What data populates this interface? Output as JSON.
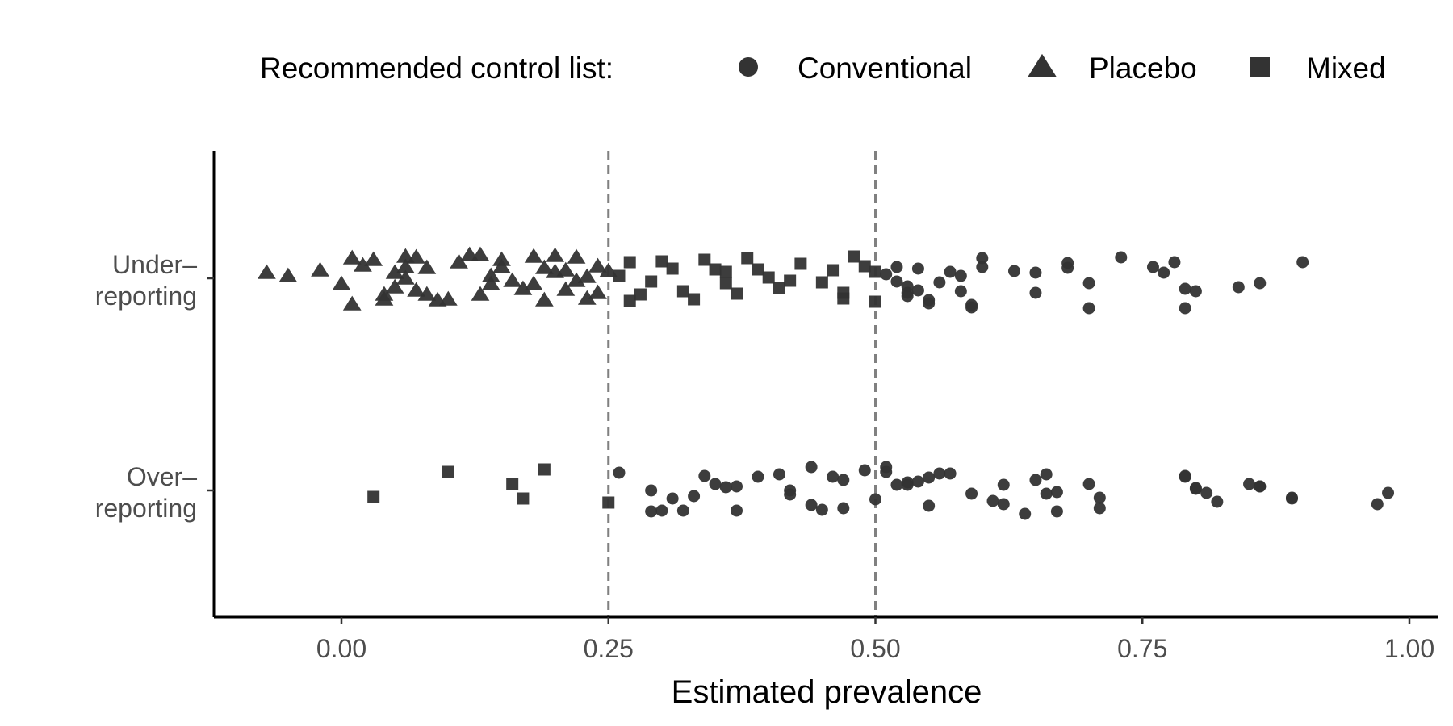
{
  "chart_data": {
    "type": "scatter",
    "xlabel": "Estimated prevalence",
    "ylabel": "",
    "xlim": [
      -0.12,
      1.02
    ],
    "x_ticks": [
      0.0,
      0.25,
      0.5,
      0.75,
      1.0
    ],
    "x_tick_labels": [
      "0.00",
      "0.25",
      "0.50",
      "0.75",
      "1.00"
    ],
    "categories": [
      "Under-reporting",
      "Over-reporting"
    ],
    "category_labels": [
      [
        "Under–",
        "reporting"
      ],
      [
        "Over–",
        "reporting"
      ]
    ],
    "reference_lines": [
      0.25,
      0.5
    ],
    "grid": false,
    "legend": {
      "title": "Recommended control list:",
      "placement": "top",
      "entries": [
        {
          "label": "Conventional",
          "shape": "circle"
        },
        {
          "label": "Placebo",
          "shape": "triangle"
        },
        {
          "label": "Mixed",
          "shape": "square"
        }
      ]
    },
    "point_color": "#333333",
    "series": [
      {
        "name": "Conventional",
        "shape": "circle",
        "category": "Under-reporting",
        "x": [
          0.51,
          0.52,
          0.52,
          0.53,
          0.53,
          0.53,
          0.54,
          0.54,
          0.55,
          0.55,
          0.56,
          0.57,
          0.58,
          0.58,
          0.59,
          0.59,
          0.6,
          0.6,
          0.63,
          0.65,
          0.65,
          0.68,
          0.68,
          0.7,
          0.7,
          0.73,
          0.76,
          0.77,
          0.78,
          0.79,
          0.79,
          0.8,
          0.84,
          0.86,
          0.9
        ],
        "jitter": [
          0.05,
          -0.04,
          0.14,
          -0.18,
          -0.1,
          -0.22,
          -0.15,
          0.12,
          -0.31,
          -0.27,
          -0.05,
          0.08,
          0.03,
          -0.16,
          -0.33,
          -0.36,
          0.25,
          0.14,
          0.09,
          0.07,
          -0.18,
          0.19,
          0.13,
          -0.06,
          -0.37,
          0.26,
          0.14,
          0.07,
          0.2,
          -0.13,
          -0.37,
          -0.16,
          -0.11,
          -0.06,
          0.2
        ]
      },
      {
        "name": "Placebo",
        "shape": "triangle",
        "category": "Under-reporting",
        "x": [
          -0.07,
          -0.05,
          -0.02,
          0.0,
          0.01,
          0.01,
          0.02,
          0.03,
          0.04,
          0.04,
          0.05,
          0.05,
          0.06,
          0.06,
          0.06,
          0.07,
          0.07,
          0.08,
          0.08,
          0.09,
          0.1,
          0.11,
          0.12,
          0.13,
          0.13,
          0.14,
          0.14,
          0.15,
          0.15,
          0.16,
          0.17,
          0.18,
          0.18,
          0.19,
          0.19,
          0.2,
          0.2,
          0.21,
          0.21,
          0.22,
          0.22,
          0.23,
          0.23,
          0.24,
          0.24,
          0.25
        ],
        "jitter": [
          0.07,
          0.03,
          0.1,
          -0.07,
          0.25,
          -0.32,
          0.16,
          0.23,
          -0.2,
          -0.26,
          0.07,
          -0.11,
          0.27,
          0.0,
          0.14,
          0.26,
          -0.15,
          -0.2,
          0.13,
          -0.27,
          -0.26,
          0.2,
          0.29,
          0.29,
          -0.2,
          -0.07,
          0.03,
          0.14,
          0.23,
          -0.03,
          -0.13,
          0.27,
          -0.07,
          0.13,
          -0.27,
          0.08,
          0.28,
          -0.14,
          0.1,
          -0.03,
          0.26,
          -0.25,
          0.02,
          0.15,
          -0.18,
          0.09
        ]
      },
      {
        "name": "Mixed",
        "shape": "square",
        "category": "Under-reporting",
        "x": [
          0.26,
          0.27,
          0.27,
          0.28,
          0.29,
          0.3,
          0.31,
          0.32,
          0.33,
          0.34,
          0.35,
          0.36,
          0.36,
          0.37,
          0.38,
          0.39,
          0.4,
          0.41,
          0.42,
          0.43,
          0.45,
          0.46,
          0.47,
          0.47,
          0.48,
          0.49,
          0.5,
          0.5
        ],
        "jitter": [
          0.03,
          0.2,
          -0.28,
          -0.2,
          -0.04,
          0.21,
          0.12,
          -0.16,
          -0.26,
          0.23,
          0.11,
          -0.06,
          0.08,
          -0.19,
          0.25,
          0.11,
          0.01,
          -0.12,
          -0.03,
          0.18,
          -0.05,
          0.1,
          -0.18,
          -0.25,
          0.27,
          0.15,
          -0.29,
          0.08
        ]
      },
      {
        "name": "Conventional",
        "shape": "circle",
        "category": "Over-reporting",
        "x": [
          0.26,
          0.29,
          0.29,
          0.3,
          0.31,
          0.32,
          0.33,
          0.34,
          0.35,
          0.36,
          0.37,
          0.37,
          0.39,
          0.41,
          0.42,
          0.42,
          0.44,
          0.44,
          0.45,
          0.46,
          0.47,
          0.47,
          0.49,
          0.5,
          0.51,
          0.51,
          0.52,
          0.53,
          0.53,
          0.54,
          0.55,
          0.55,
          0.56,
          0.57,
          0.59,
          0.61,
          0.62,
          0.62,
          0.64,
          0.65,
          0.66,
          0.66,
          0.67,
          0.67,
          0.7,
          0.71,
          0.71,
          0.79,
          0.79,
          0.8,
          0.8,
          0.81,
          0.82,
          0.85,
          0.86,
          0.86,
          0.89,
          0.89,
          0.97,
          0.98
        ],
        "jitter": [
          0.22,
          0.0,
          -0.26,
          -0.25,
          -0.1,
          -0.25,
          -0.07,
          0.18,
          0.08,
          0.04,
          -0.25,
          0.05,
          0.17,
          0.2,
          0.0,
          -0.05,
          0.29,
          -0.18,
          -0.24,
          0.17,
          0.13,
          -0.22,
          0.25,
          -0.11,
          0.29,
          0.23,
          0.07,
          0.1,
          0.07,
          0.11,
          0.16,
          -0.19,
          0.21,
          0.21,
          -0.04,
          -0.13,
          0.07,
          -0.17,
          -0.29,
          0.13,
          0.2,
          -0.04,
          -0.02,
          -0.26,
          0.08,
          -0.09,
          -0.22,
          0.18,
          0.17,
          0.03,
          0.02,
          -0.03,
          -0.14,
          0.08,
          0.05,
          0.05,
          -0.09,
          -0.1,
          -0.17,
          -0.03
        ]
      },
      {
        "name": "Mixed",
        "shape": "square",
        "category": "Over-reporting",
        "x": [
          0.03,
          0.1,
          0.16,
          0.17,
          0.19,
          0.25
        ],
        "jitter": [
          -0.08,
          0.23,
          0.08,
          -0.1,
          0.26,
          -0.15
        ]
      }
    ]
  }
}
